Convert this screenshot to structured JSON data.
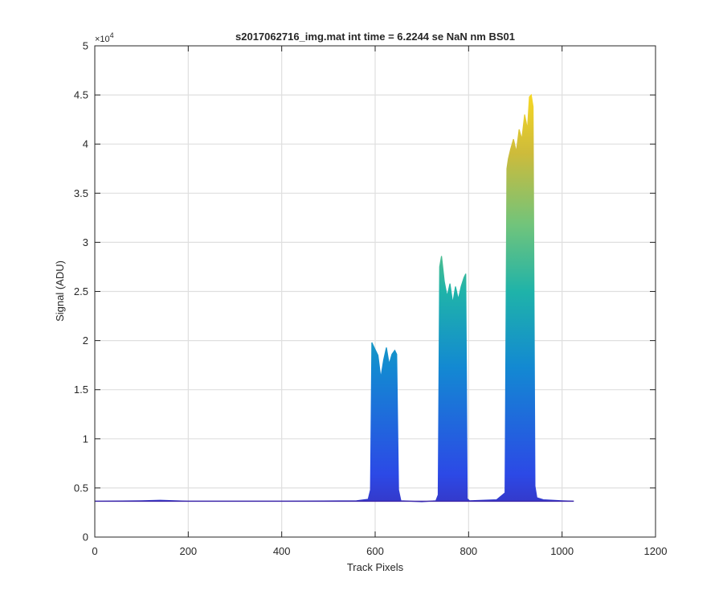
{
  "chart_data": {
    "type": "area",
    "title": "s2017062716_img.mat int time = 6.2244 se  NaN nm BS01",
    "xlabel": "Track Pixels",
    "ylabel": "Signal (ADU)",
    "y_multiplier_label": "×10",
    "y_multiplier_exponent": "4",
    "xlim": [
      0,
      1200
    ],
    "ylim": [
      0,
      50000
    ],
    "xticks": [
      0,
      200,
      400,
      600,
      800,
      1000,
      1200
    ],
    "xtick_labels": [
      "0",
      "200",
      "400",
      "600",
      "800",
      "1000",
      "1200"
    ],
    "yticks": [
      0,
      5000,
      10000,
      15000,
      20000,
      25000,
      30000,
      35000,
      40000,
      45000,
      50000
    ],
    "ytick_labels": [
      "0",
      "0.5",
      "1",
      "1.5",
      "2",
      "2.5",
      "3",
      "3.5",
      "4",
      "4.5",
      "5"
    ],
    "grid": true,
    "baseline_signal": 3650,
    "colormap": [
      "#3e26a8",
      "#2c49e6",
      "#1389d2",
      "#1fb3a9",
      "#71c47b",
      "#cdbb3b",
      "#f9d923"
    ],
    "series": [
      {
        "x": [
          0,
          100,
          140,
          200,
          400,
          560,
          585,
          590,
          593,
          598,
          606,
          612,
          618,
          624,
          630,
          636,
          642,
          646,
          650,
          655,
          700,
          730,
          735,
          738,
          742,
          748,
          754,
          760,
          766,
          772,
          778,
          784,
          790,
          794,
          797,
          802,
          860,
          878,
          882,
          885,
          890,
          896,
          902,
          908,
          914,
          920,
          926,
          930,
          934,
          938,
          942,
          946,
          960,
          1000,
          1025
        ],
        "y": [
          3650,
          3700,
          3750,
          3650,
          3650,
          3700,
          3850,
          4800,
          19800,
          19300,
          18500,
          16200,
          18000,
          19300,
          17600,
          18600,
          19000,
          18600,
          4800,
          3700,
          3600,
          3700,
          4300,
          27500,
          28600,
          26000,
          24500,
          25800,
          23800,
          25500,
          24200,
          25500,
          26400,
          26800,
          3900,
          3700,
          3800,
          4500,
          37500,
          38500,
          39500,
          40500,
          39200,
          41500,
          40500,
          43000,
          41500,
          44800,
          45000,
          43800,
          5200,
          4000,
          3800,
          3700,
          3650
        ]
      }
    ]
  }
}
